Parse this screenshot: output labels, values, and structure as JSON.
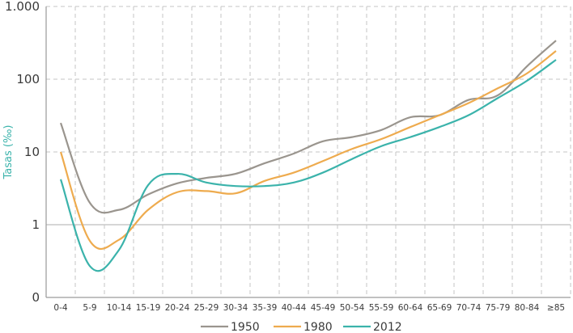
{
  "chart_data": {
    "type": "line",
    "title": "",
    "xlabel": "",
    "ylabel": "Tasas (‰)",
    "yscale": "log",
    "ylim": [
      0.1,
      1000
    ],
    "yticks": [
      {
        "value": 0.1,
        "label": "0"
      },
      {
        "value": 1,
        "label": "1"
      },
      {
        "value": 10,
        "label": "10"
      },
      {
        "value": 100,
        "label": "100"
      },
      {
        "value": 1000,
        "label": "1.000"
      }
    ],
    "categories": [
      "0-4",
      "5-9",
      "10-14",
      "15-19",
      "20-24",
      "25-29",
      "30-34",
      "35-39",
      "40-44",
      "45-49",
      "50-54",
      "55-59",
      "60-64",
      "65-69",
      "70-74",
      "75-79",
      "80-84",
      "≥85"
    ],
    "series": [
      {
        "name": "1950",
        "color": "#9a958e",
        "values": [
          25,
          2.0,
          1.6,
          2.6,
          3.7,
          4.4,
          5.0,
          7.0,
          9.5,
          14,
          16,
          20,
          30,
          32,
          52,
          60,
          150,
          340
        ]
      },
      {
        "name": "1980",
        "color": "#eeab4e",
        "values": [
          10,
          0.6,
          0.62,
          1.6,
          2.8,
          2.9,
          2.7,
          4.0,
          5.2,
          7.5,
          11,
          15,
          22,
          32,
          47,
          75,
          120,
          245
        ]
      },
      {
        "name": "2012",
        "color": "#3bb3ab",
        "values": [
          4.2,
          0.27,
          0.45,
          3.5,
          5.0,
          3.8,
          3.4,
          3.4,
          3.8,
          5.2,
          8.0,
          12,
          16,
          22,
          32,
          55,
          95,
          185
        ]
      }
    ],
    "grid": true,
    "legend_position": "bottom"
  }
}
